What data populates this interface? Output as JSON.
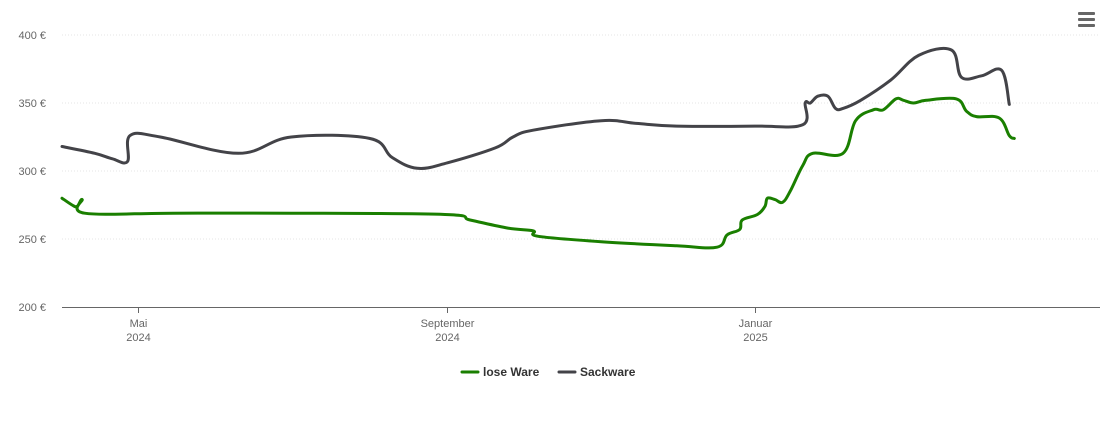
{
  "chart_data": {
    "type": "line",
    "ylim": [
      200,
      400
    ],
    "y_ticks": [
      "400 €",
      "350 €",
      "300 €",
      "250 €",
      "200 €"
    ],
    "y_tick_values": [
      400,
      350,
      300,
      250,
      200
    ],
    "grid": true,
    "legend_position": "bottom-center",
    "x_range": [
      "2024-04-01",
      "2025-05-18"
    ],
    "x_ticks": [
      {
        "date": "2024-05-01",
        "label1": "Mai",
        "label2": "2024"
      },
      {
        "date": "2024-09-01",
        "label1": "September",
        "label2": "2024"
      },
      {
        "date": "2025-01-01",
        "label1": "Januar",
        "label2": "2025"
      }
    ],
    "series": [
      {
        "name": "lose Ware",
        "color": "#1a7f00",
        "points": [
          [
            "2024-04-01",
            280
          ],
          [
            "2024-04-05",
            275
          ],
          [
            "2024-04-07",
            274
          ],
          [
            "2024-04-09",
            279
          ],
          [
            "2024-04-10",
            269
          ],
          [
            "2024-05-15",
            269
          ],
          [
            "2024-07-01",
            269
          ],
          [
            "2024-08-31",
            268
          ],
          [
            "2024-09-10",
            264
          ],
          [
            "2024-09-25",
            258
          ],
          [
            "2024-10-05",
            256
          ],
          [
            "2024-10-07",
            252
          ],
          [
            "2024-11-01",
            248
          ],
          [
            "2024-12-01",
            245
          ],
          [
            "2024-12-17",
            244
          ],
          [
            "2024-12-21",
            253
          ],
          [
            "2024-12-26",
            257
          ],
          [
            "2024-12-27",
            264
          ],
          [
            "2025-01-02",
            268
          ],
          [
            "2025-01-05",
            274
          ],
          [
            "2025-01-06",
            280
          ],
          [
            "2025-01-09",
            279
          ],
          [
            "2025-01-12",
            277
          ],
          [
            "2025-01-15",
            285
          ],
          [
            "2025-01-20",
            304
          ],
          [
            "2025-01-24",
            313
          ],
          [
            "2025-02-05",
            313
          ],
          [
            "2025-02-10",
            337
          ],
          [
            "2025-02-17",
            345
          ],
          [
            "2025-02-21",
            345
          ],
          [
            "2025-02-26",
            353
          ],
          [
            "2025-03-01",
            352
          ],
          [
            "2025-03-05",
            350
          ],
          [
            "2025-03-10",
            352
          ],
          [
            "2025-03-22",
            353
          ],
          [
            "2025-03-26",
            344
          ],
          [
            "2025-03-30",
            340
          ],
          [
            "2025-04-08",
            339
          ],
          [
            "2025-04-12",
            326
          ],
          [
            "2025-04-14",
            324
          ]
        ]
      },
      {
        "name": "Sackware",
        "color": "#434348",
        "points": [
          [
            "2024-04-01",
            318
          ],
          [
            "2024-04-14",
            313
          ],
          [
            "2024-04-21",
            309
          ],
          [
            "2024-04-27",
            307
          ],
          [
            "2024-04-28",
            326
          ],
          [
            "2024-05-10",
            325
          ],
          [
            "2024-06-10",
            313
          ],
          [
            "2024-07-01",
            325
          ],
          [
            "2024-08-01",
            324
          ],
          [
            "2024-08-10",
            310
          ],
          [
            "2024-08-20",
            302
          ],
          [
            "2024-09-01",
            306
          ],
          [
            "2024-09-20",
            317
          ],
          [
            "2024-09-27",
            325
          ],
          [
            "2024-10-05",
            330
          ],
          [
            "2024-11-01",
            337
          ],
          [
            "2024-11-15",
            335
          ],
          [
            "2024-12-01",
            333
          ],
          [
            "2025-01-01",
            333
          ],
          [
            "2025-01-20",
            334
          ],
          [
            "2025-01-21",
            350
          ],
          [
            "2025-01-23",
            350
          ],
          [
            "2025-01-26",
            355
          ],
          [
            "2025-01-30",
            355
          ],
          [
            "2025-02-02",
            346
          ],
          [
            "2025-02-05",
            346
          ],
          [
            "2025-02-12",
            352
          ],
          [
            "2025-02-24",
            367
          ],
          [
            "2025-03-07",
            385
          ],
          [
            "2025-03-20",
            389
          ],
          [
            "2025-03-24",
            369
          ],
          [
            "2025-04-01",
            370
          ],
          [
            "2025-04-09",
            374
          ],
          [
            "2025-04-12",
            349
          ]
        ]
      }
    ]
  },
  "legend": {
    "items": [
      {
        "label": "lose Ware",
        "color": "#1a7f00"
      },
      {
        "label": "Sackware",
        "color": "#434348"
      }
    ]
  },
  "menu": {
    "icon": "hamburger-menu-icon"
  }
}
